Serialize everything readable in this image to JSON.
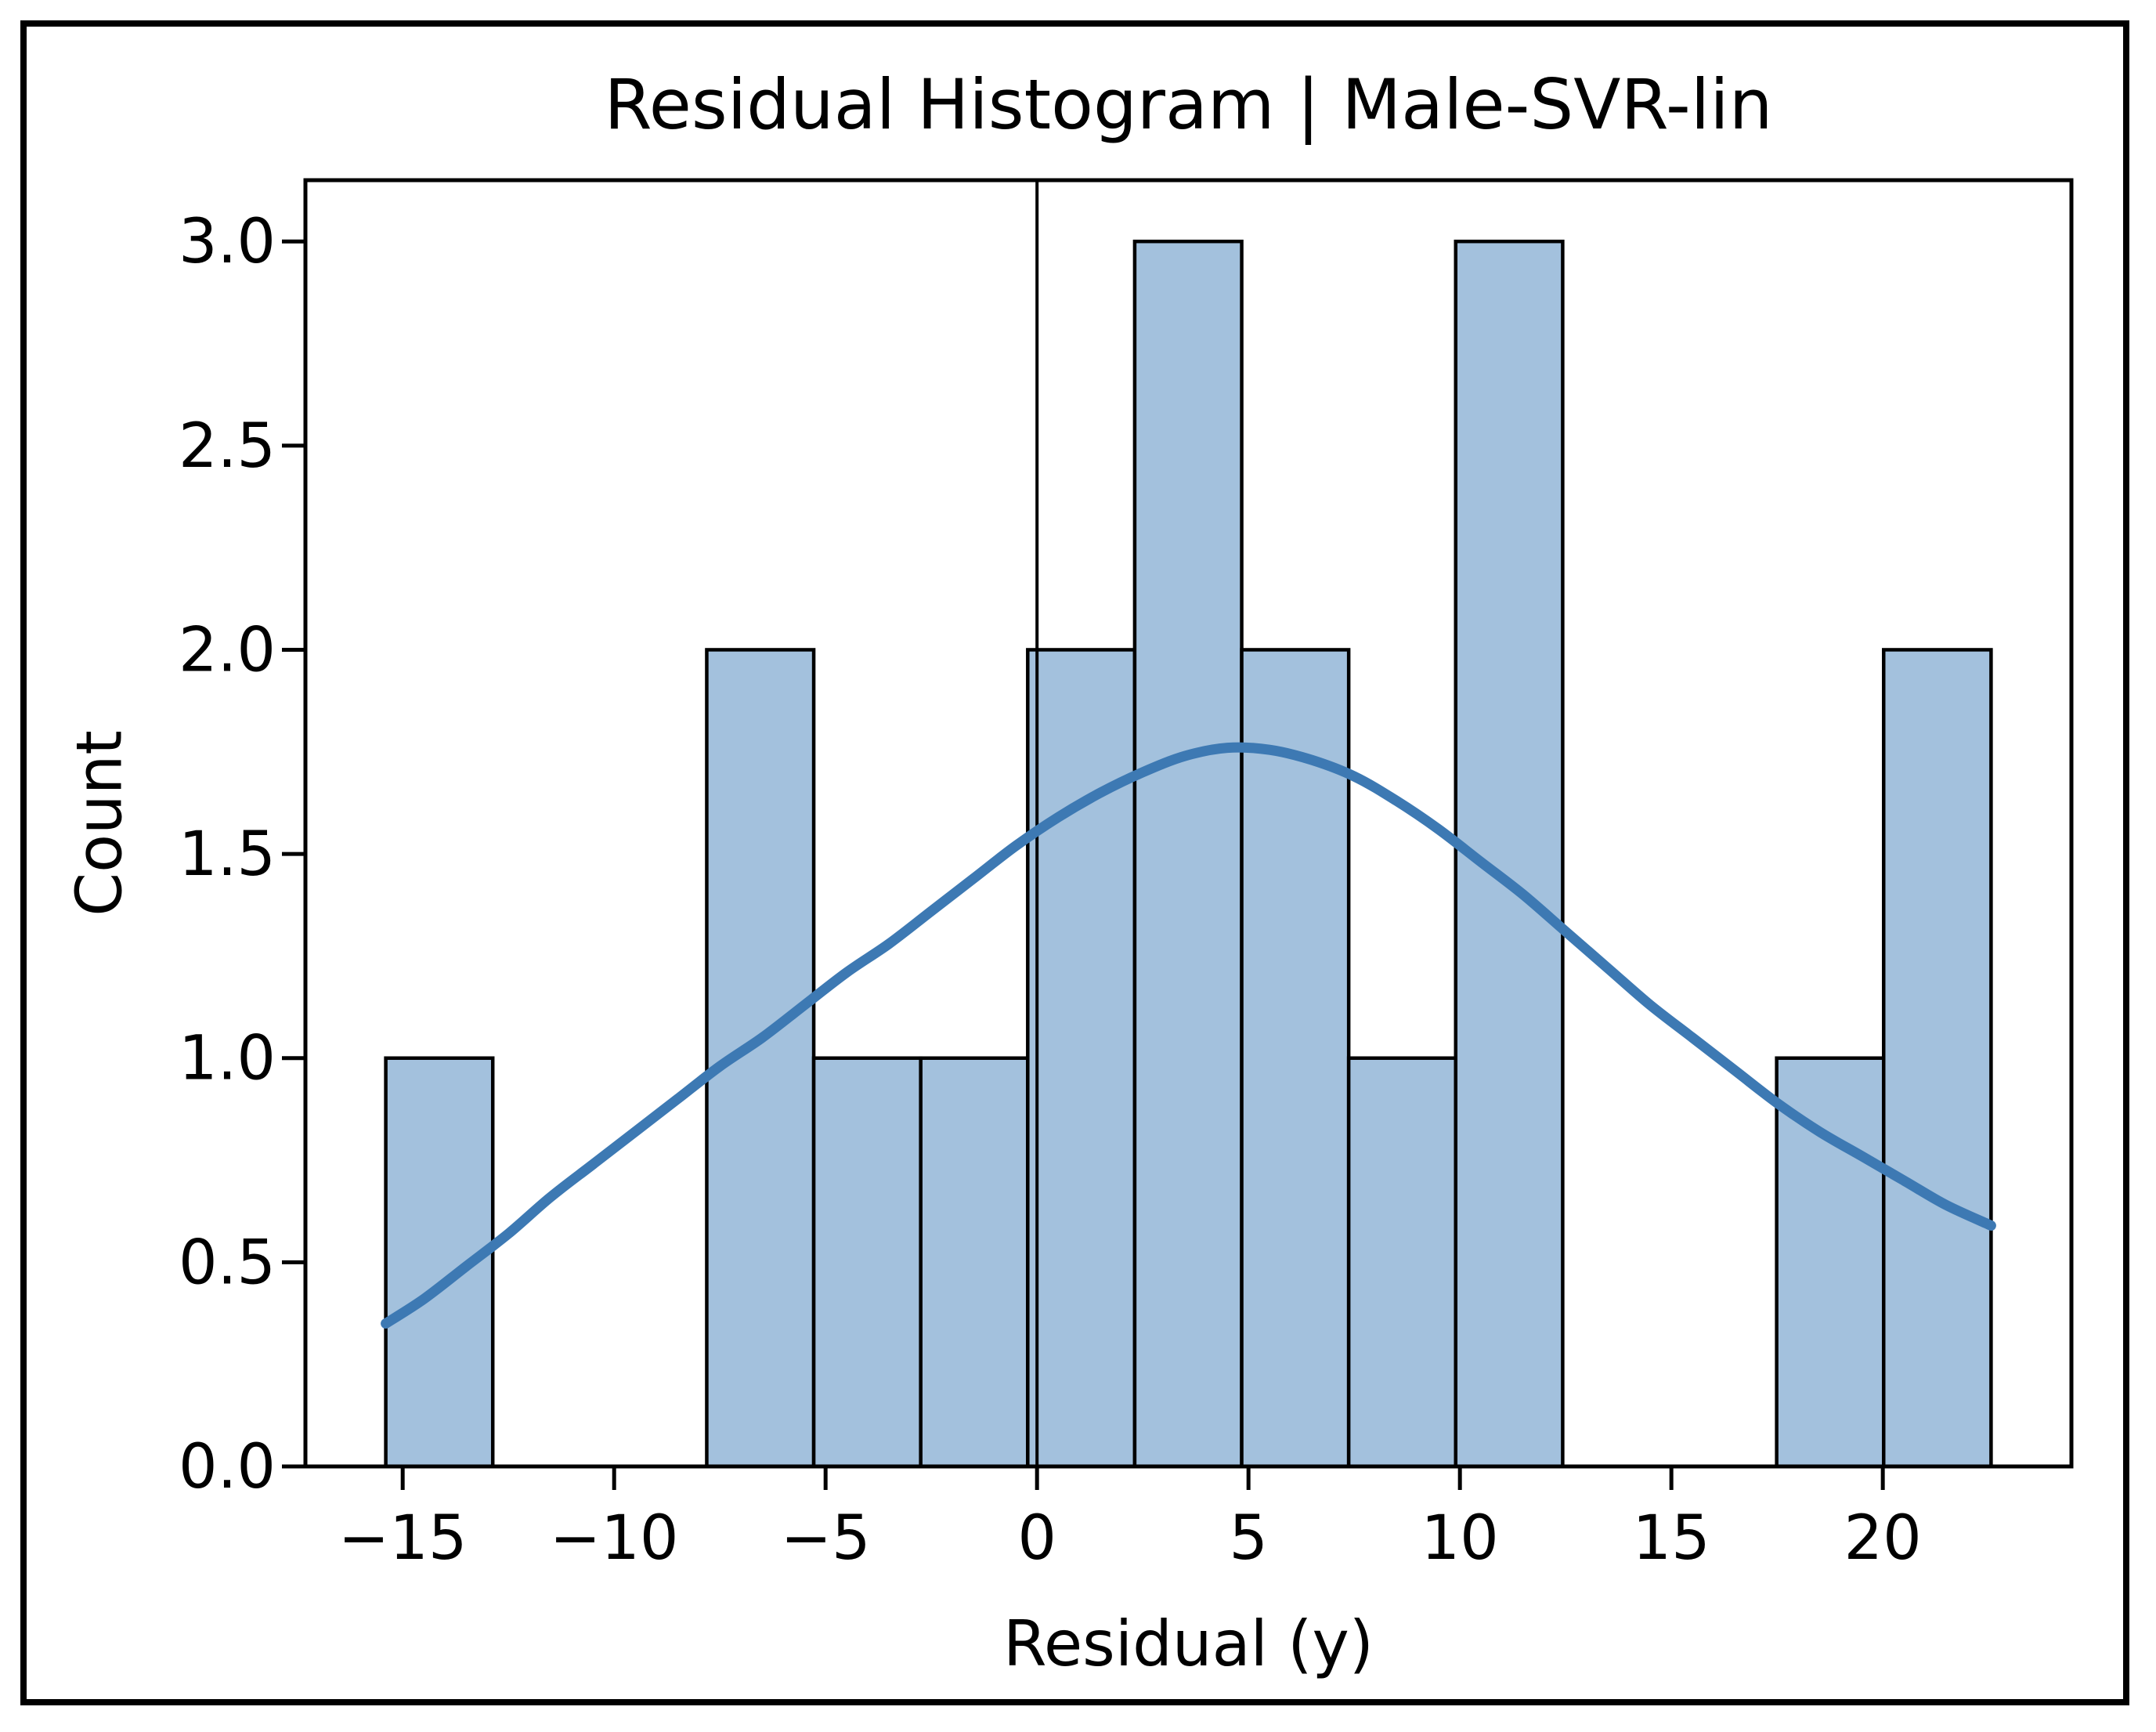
{
  "figure": {
    "background": "#ffffff",
    "border_color": "#000000"
  },
  "chart_data": {
    "type": "bar",
    "subtype": "histogram_with_kde",
    "title": "Residual Histogram | Male-SVR-lin",
    "xlabel": "Residual (y)",
    "ylabel": "Count",
    "xlim": [
      -17.3,
      24.46
    ],
    "ylim": [
      0,
      3.15
    ],
    "grid": false,
    "legend": null,
    "x_ticks": {
      "values": [
        -15,
        -10,
        -5,
        0,
        5,
        10,
        15,
        20
      ],
      "labels": [
        "−15",
        "−10",
        "−5",
        "0",
        "5",
        "10",
        "15",
        "20"
      ]
    },
    "y_ticks": {
      "values": [
        0.0,
        0.5,
        1.0,
        1.5,
        2.0,
        2.5,
        3.0
      ],
      "labels": [
        "0.0",
        "0.5",
        "1.0",
        "1.5",
        "2.0",
        "2.5",
        "3.0"
      ]
    },
    "bins": {
      "edges": [
        -15.4,
        -12.87,
        -10.34,
        -7.81,
        -5.28,
        -2.75,
        -0.22,
        2.31,
        4.84,
        7.37,
        9.9,
        12.43,
        14.96,
        17.49,
        20.02,
        22.56
      ],
      "counts": [
        1,
        0,
        0,
        2,
        1,
        1,
        2,
        3,
        2,
        1,
        3,
        0,
        0,
        1,
        2
      ]
    },
    "reference_line_x": 0,
    "kde_curve": {
      "points": [
        [
          -15.4,
          0.35
        ],
        [
          -14.5,
          0.41
        ],
        [
          -13.5,
          0.49
        ],
        [
          -12.5,
          0.57
        ],
        [
          -11.5,
          0.66
        ],
        [
          -10.5,
          0.74
        ],
        [
          -9.5,
          0.82
        ],
        [
          -8.5,
          0.9
        ],
        [
          -7.5,
          0.98
        ],
        [
          -6.5,
          1.05
        ],
        [
          -5.5,
          1.13
        ],
        [
          -4.5,
          1.21
        ],
        [
          -3.5,
          1.28
        ],
        [
          -2.5,
          1.36
        ],
        [
          -1.5,
          1.44
        ],
        [
          -0.5,
          1.52
        ],
        [
          0.5,
          1.59
        ],
        [
          1.5,
          1.65
        ],
        [
          2.5,
          1.7
        ],
        [
          3.5,
          1.74
        ],
        [
          4.5,
          1.76
        ],
        [
          5.5,
          1.755
        ],
        [
          6.5,
          1.73
        ],
        [
          7.5,
          1.69
        ],
        [
          8.5,
          1.63
        ],
        [
          9.5,
          1.56
        ],
        [
          10.5,
          1.48
        ],
        [
          11.5,
          1.4
        ],
        [
          12.5,
          1.31
        ],
        [
          13.5,
          1.22
        ],
        [
          14.5,
          1.13
        ],
        [
          15.5,
          1.05
        ],
        [
          16.5,
          0.97
        ],
        [
          17.5,
          0.89
        ],
        [
          18.5,
          0.82
        ],
        [
          19.5,
          0.76
        ],
        [
          20.5,
          0.7
        ],
        [
          21.5,
          0.64
        ],
        [
          22.56,
          0.59
        ]
      ]
    },
    "colors": {
      "bar_fill": "#a3c1dd",
      "bar_edge": "#000000",
      "kde_line": "#3d79b3",
      "reference_line": "#000000",
      "axis": "#000000"
    }
  }
}
